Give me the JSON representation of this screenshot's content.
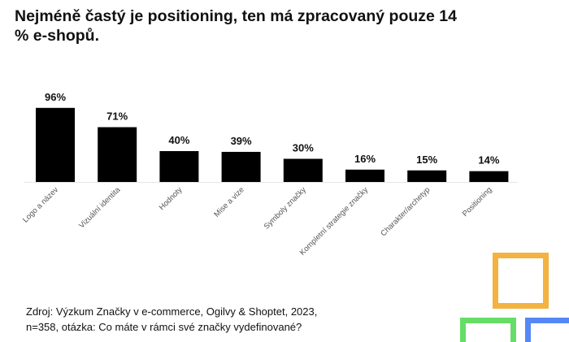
{
  "title": "Nejméně častý je positioning, ten má zpracovaný pouze 14 % e-shopů.",
  "source": [
    "Zdroj: Výzkum Značky v e-commerce, Ogilvy & Shoptet, 2023,",
    "n=358, otázka: Co máte v rámci své značky vydefinované?"
  ],
  "chart_data": {
    "type": "bar",
    "categories": [
      "Logo a název",
      "Vizuální identita",
      "Hodnoty",
      "Mise a vize",
      "Symboly značky",
      "Kompletní strategie značky",
      "Charakter/archetyp",
      "Positioning"
    ],
    "values": [
      96,
      71,
      40,
      39,
      30,
      16,
      15,
      14
    ],
    "data_labels": [
      "96%",
      "71%",
      "40%",
      "39%",
      "30%",
      "16%",
      "15%",
      "14%"
    ],
    "ylim": [
      0,
      100
    ],
    "grid": false,
    "bar_color": "#000000"
  },
  "decor_colors": {
    "orange": "#F2B340",
    "green": "#66DD66",
    "blue": "#5588F5"
  }
}
